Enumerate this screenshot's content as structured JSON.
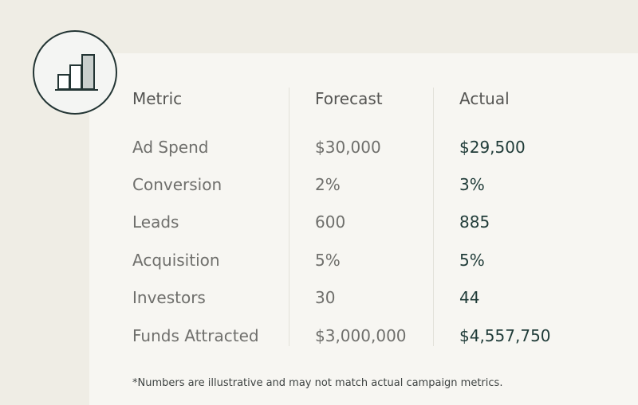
{
  "table": {
    "headers": [
      "Metric",
      "Forecast",
      "Actual"
    ],
    "rows": [
      {
        "metric": "Ad Spend",
        "forecast": "$30,000",
        "actual": "$29,500"
      },
      {
        "metric": "Conversion",
        "forecast": "2%",
        "actual": "3%"
      },
      {
        "metric": "Leads",
        "forecast": "600",
        "actual": "885"
      },
      {
        "metric": "Acquisition",
        "forecast": "5%",
        "actual": "5%"
      },
      {
        "metric": "Investors",
        "forecast": "30",
        "actual": "44"
      },
      {
        "metric": "Funds Attracted",
        "forecast": "$3,000,000",
        "actual": "$4,557,750"
      }
    ]
  },
  "footnote": "*Numbers are illustrative and may not match actual campaign metrics.",
  "icon": "bar-chart-icon",
  "colors": {
    "background": "#efede5",
    "card": "#f7f6f2",
    "text_dark": "#1f3b38",
    "text_muted": "#6f6f6c"
  }
}
